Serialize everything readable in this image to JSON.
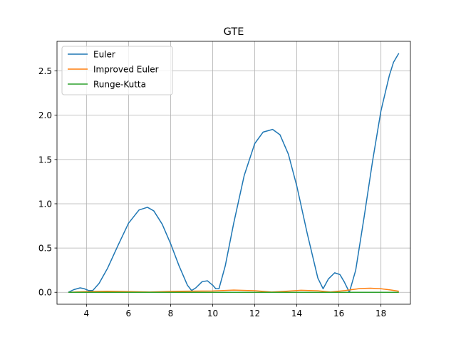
{
  "chart_data": {
    "type": "line",
    "title": "GTE",
    "xlabel": "",
    "ylabel": "",
    "xlim": [
      2.6,
      19.4
    ],
    "ylim": [
      -0.135,
      2.835
    ],
    "xticks": [
      4,
      6,
      8,
      10,
      12,
      14,
      16,
      18
    ],
    "yticks": [
      0.0,
      0.5,
      1.0,
      1.5,
      2.0,
      2.5
    ],
    "grid": true,
    "legend_position": "top-left",
    "series": [
      {
        "name": "Euler",
        "color": "#1f77b4",
        "x": [
          3.14,
          3.4,
          3.7,
          3.9,
          4.1,
          4.3,
          4.6,
          5.0,
          5.5,
          6.0,
          6.5,
          6.9,
          7.2,
          7.6,
          8.0,
          8.4,
          8.8,
          9.0,
          9.2,
          9.5,
          9.75,
          10.0,
          10.15,
          10.3,
          10.6,
          11.0,
          11.5,
          12.0,
          12.4,
          12.85,
          13.2,
          13.6,
          14.0,
          14.5,
          15.0,
          15.25,
          15.5,
          15.8,
          16.05,
          16.25,
          16.5,
          16.8,
          17.2,
          17.6,
          18.0,
          18.4,
          18.6,
          18.85
        ],
        "y": [
          0.0,
          0.03,
          0.05,
          0.04,
          0.02,
          0.02,
          0.1,
          0.27,
          0.53,
          0.78,
          0.93,
          0.96,
          0.92,
          0.77,
          0.55,
          0.3,
          0.08,
          0.02,
          0.05,
          0.12,
          0.13,
          0.08,
          0.04,
          0.04,
          0.3,
          0.78,
          1.32,
          1.68,
          1.81,
          1.84,
          1.78,
          1.56,
          1.2,
          0.66,
          0.16,
          0.04,
          0.15,
          0.22,
          0.2,
          0.12,
          0.0,
          0.25,
          0.85,
          1.48,
          2.05,
          2.45,
          2.6,
          2.7
        ]
      },
      {
        "name": "Improved Euler",
        "color": "#ff7f0e",
        "x": [
          3.14,
          4.0,
          5.0,
          6.0,
          7.0,
          8.0,
          9.0,
          10.0,
          11.0,
          12.0,
          12.8,
          13.5,
          14.2,
          15.0,
          15.6,
          16.3,
          17.0,
          17.5,
          18.0,
          18.5,
          18.85
        ],
        "y": [
          0.0,
          0.008,
          0.012,
          0.008,
          0.003,
          0.01,
          0.013,
          0.015,
          0.025,
          0.018,
          0.003,
          0.012,
          0.023,
          0.017,
          0.003,
          0.02,
          0.042,
          0.046,
          0.04,
          0.025,
          0.012
        ]
      },
      {
        "name": "Runge-Kutta",
        "color": "#2ca02c",
        "x": [
          3.14,
          6.0,
          9.0,
          12.0,
          15.0,
          18.85
        ],
        "y": [
          0.0,
          0.0,
          0.0,
          0.0,
          0.0,
          0.0
        ]
      }
    ]
  }
}
